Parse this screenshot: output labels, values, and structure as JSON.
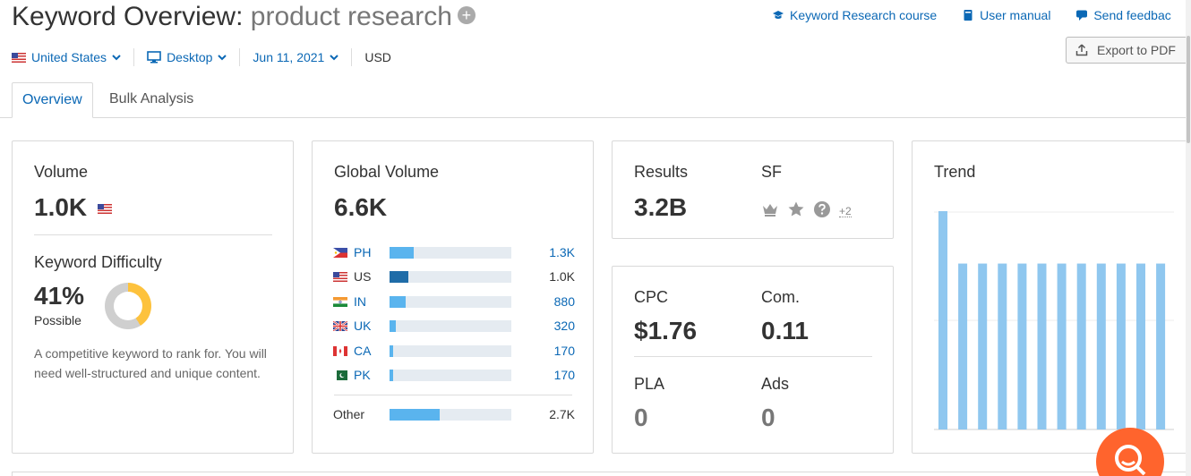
{
  "header": {
    "title_prefix": "Keyword Overview:",
    "keyword": "product research",
    "links": [
      {
        "label": "Keyword Research course",
        "icon": "graduation-cap-icon"
      },
      {
        "label": "User manual",
        "icon": "book-icon"
      },
      {
        "label": "Send feedbac",
        "icon": "speech-bubble-icon"
      }
    ],
    "export_label": "Export to PDF"
  },
  "filters": {
    "country": "United States",
    "device": "Desktop",
    "date": "Jun 11, 2021",
    "currency": "USD"
  },
  "tabs": [
    {
      "label": "Overview",
      "active": true
    },
    {
      "label": "Bulk Analysis",
      "active": false
    }
  ],
  "volume": {
    "label": "Volume",
    "value": "1.0K"
  },
  "keyword_difficulty": {
    "label": "Keyword Difficulty",
    "percent": "41%",
    "percent_value": 41,
    "level": "Possible",
    "description": "A competitive keyword to rank for. You will need well-structured and unique content.",
    "color": "#fdc23d"
  },
  "global_volume": {
    "label": "Global Volume",
    "value": "6.6K",
    "countries": [
      {
        "code": "PH",
        "value": "1.3K",
        "share": 0.2
      },
      {
        "code": "US",
        "value": "1.0K",
        "share": 0.155,
        "highlight": true
      },
      {
        "code": "IN",
        "value": "880",
        "share": 0.135
      },
      {
        "code": "UK",
        "value": "320",
        "share": 0.05
      },
      {
        "code": "CA",
        "value": "170",
        "share": 0.026
      },
      {
        "code": "PK",
        "value": "170",
        "share": 0.026
      }
    ],
    "other": {
      "label": "Other",
      "value": "2.7K",
      "share": 0.41
    }
  },
  "results": {
    "results_label": "Results",
    "results_value": "3.2B",
    "sf_label": "SF",
    "sf_icons": [
      "crown-icon",
      "star-icon",
      "question-icon"
    ],
    "sf_more": "+2"
  },
  "cpc": {
    "cpc_label": "CPC",
    "cpc_value": "$1.76",
    "com_label": "Com.",
    "com_value": "0.11",
    "pla_label": "PLA",
    "pla_value": "0",
    "ads_label": "Ads",
    "ads_value": "0"
  },
  "trend": {
    "label": "Trend",
    "bar_color": "#8fc7ef"
  },
  "chart_data": {
    "type": "bar",
    "values": [
      1.0,
      0.76,
      0.76,
      0.76,
      0.76,
      0.76,
      0.76,
      0.76,
      0.76,
      0.76,
      0.76,
      0.76
    ],
    "ylim": [
      0,
      1.0
    ]
  }
}
